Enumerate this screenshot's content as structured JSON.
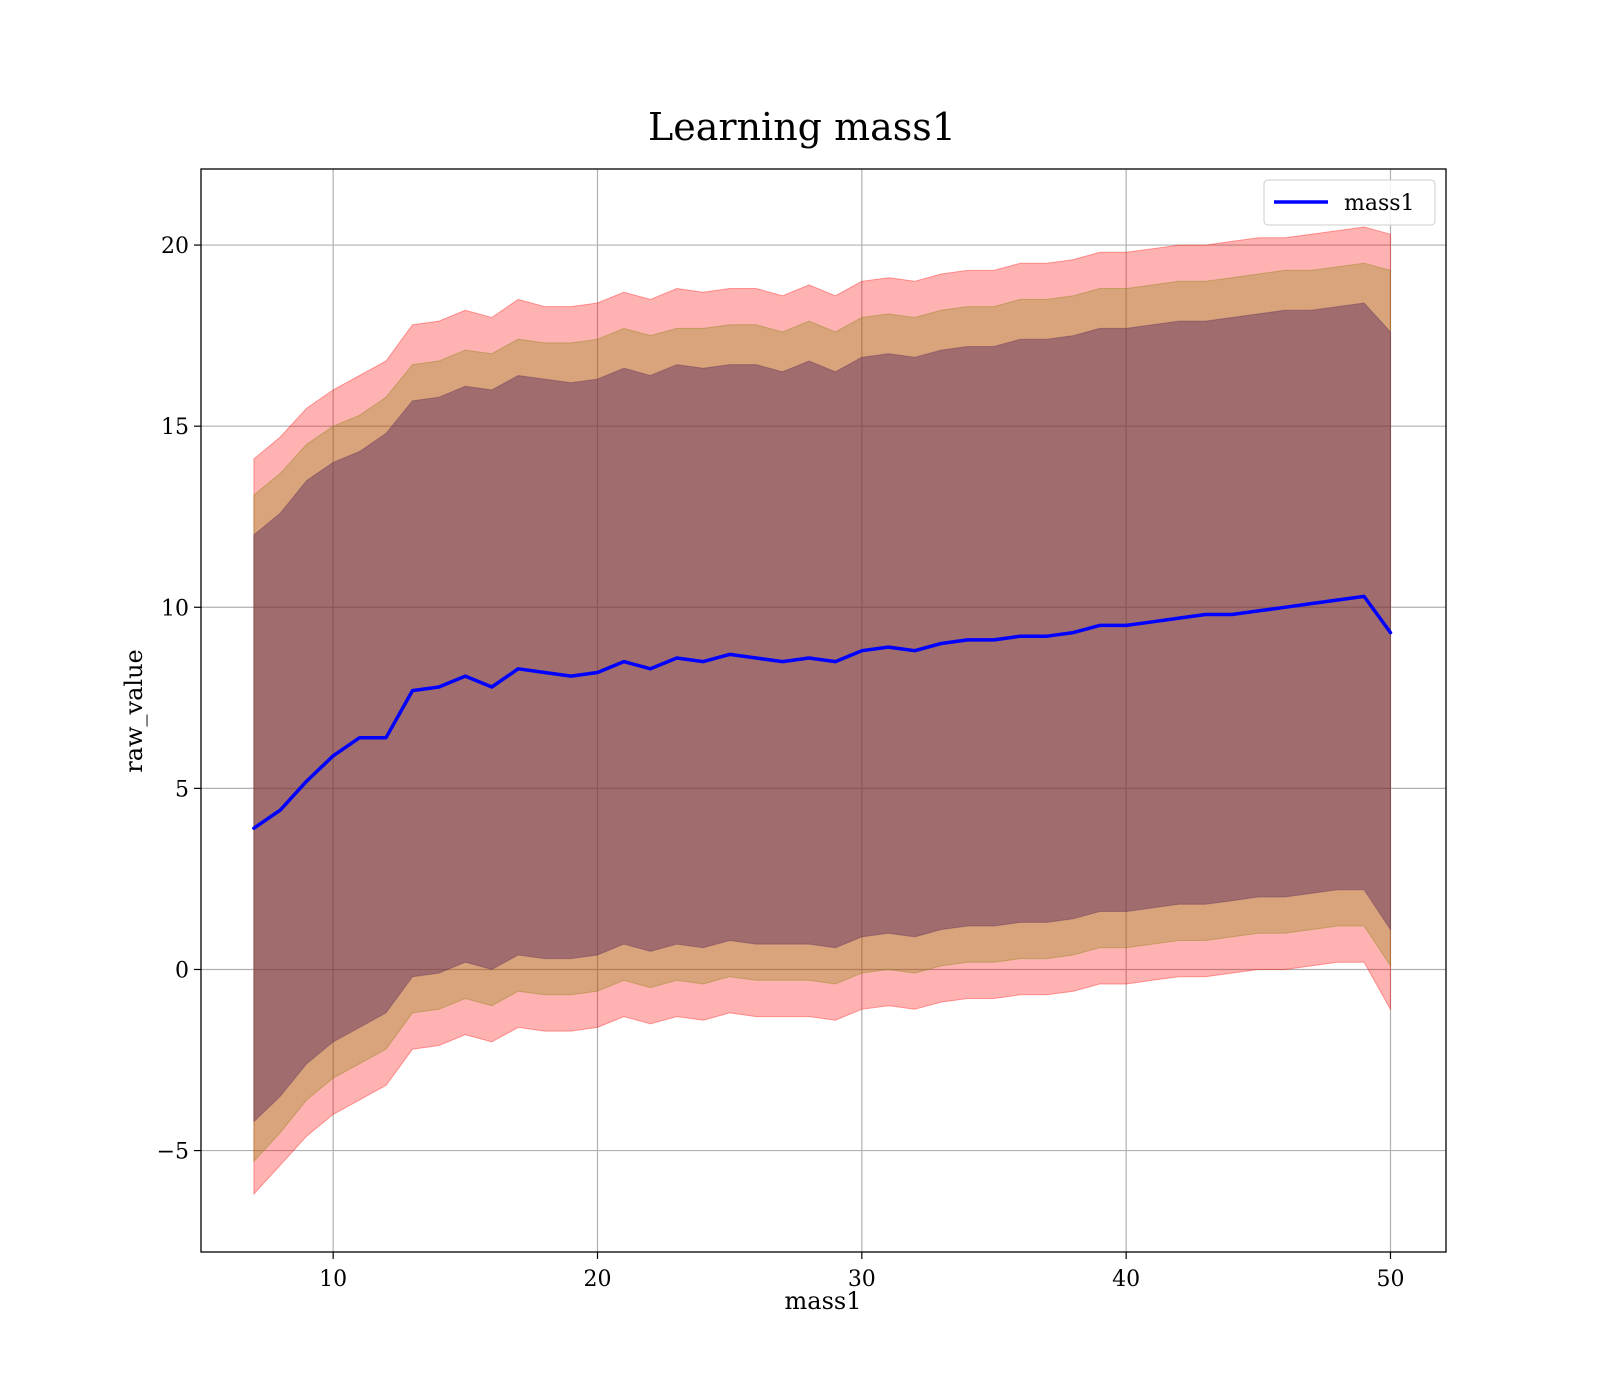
{
  "chart_data": {
    "type": "line",
    "title": "Learning mass1",
    "xlabel": "mass1",
    "ylabel": "raw_value",
    "xlim": [
      5.0,
      52.1
    ],
    "ylim": [
      -7.8,
      22.1
    ],
    "xticks": [
      10,
      20,
      30,
      40,
      50
    ],
    "xtick_labels": [
      "10",
      "20",
      "30",
      "40",
      "50"
    ],
    "yticks": [
      -5,
      0,
      5,
      10,
      15,
      20
    ],
    "ytick_labels": [
      "−5",
      "0",
      "5",
      "10",
      "15",
      "20"
    ],
    "grid": true,
    "legend_position": "top-right",
    "series": [
      {
        "name": "mass1",
        "color": "#0000ff",
        "x": [
          7,
          8,
          9,
          10,
          11,
          12,
          13,
          14,
          15,
          16,
          17,
          18,
          19,
          20,
          21,
          22,
          23,
          24,
          25,
          26,
          27,
          28,
          29,
          30,
          31,
          32,
          33,
          34,
          35,
          36,
          37,
          38,
          39,
          40,
          41,
          42,
          43,
          44,
          45,
          46,
          47,
          48,
          49,
          50
        ],
        "values": [
          3.9,
          4.4,
          5.2,
          5.9,
          6.4,
          6.4,
          7.7,
          7.8,
          8.1,
          7.8,
          8.3,
          8.2,
          8.1,
          8.2,
          8.5,
          8.3,
          8.6,
          8.5,
          8.7,
          8.6,
          8.5,
          8.6,
          8.5,
          8.8,
          8.9,
          8.8,
          9.0,
          9.1,
          9.1,
          9.2,
          9.2,
          9.3,
          9.5,
          9.5,
          9.6,
          9.7,
          9.8,
          9.8,
          9.9,
          10.0,
          10.1,
          10.2,
          10.3,
          9.3
        ],
        "bands": [
          {
            "color": "#ff0000",
            "opacity": 0.3,
            "upper": [
              14.1,
              14.7,
              15.5,
              16.0,
              16.4,
              16.8,
              17.8,
              17.9,
              18.2,
              18.0,
              18.5,
              18.3,
              18.3,
              18.4,
              18.7,
              18.5,
              18.8,
              18.7,
              18.8,
              18.8,
              18.6,
              18.9,
              18.6,
              19.0,
              19.1,
              19.0,
              19.2,
              19.3,
              19.3,
              19.5,
              19.5,
              19.6,
              19.8,
              19.8,
              19.9,
              20.0,
              20.0,
              20.1,
              20.2,
              20.2,
              20.3,
              20.4,
              20.5,
              20.3
            ],
            "lower": [
              -6.2,
              -5.4,
              -4.6,
              -4.0,
              -3.6,
              -3.2,
              -2.2,
              -2.1,
              -1.8,
              -2.0,
              -1.6,
              -1.7,
              -1.7,
              -1.6,
              -1.3,
              -1.5,
              -1.3,
              -1.4,
              -1.2,
              -1.3,
              -1.3,
              -1.3,
              -1.4,
              -1.1,
              -1.0,
              -1.1,
              -0.9,
              -0.8,
              -0.8,
              -0.7,
              -0.7,
              -0.6,
              -0.4,
              -0.4,
              -0.3,
              -0.2,
              -0.2,
              -0.1,
              0.0,
              0.0,
              0.1,
              0.2,
              0.2,
              -1.1
            ]
          },
          {
            "color": "#808000",
            "opacity": 0.3,
            "upper": [
              13.1,
              13.7,
              14.5,
              15.0,
              15.3,
              15.8,
              16.7,
              16.8,
              17.1,
              17.0,
              17.4,
              17.3,
              17.3,
              17.4,
              17.7,
              17.5,
              17.7,
              17.7,
              17.8,
              17.8,
              17.6,
              17.9,
              17.6,
              18.0,
              18.1,
              18.0,
              18.2,
              18.3,
              18.3,
              18.5,
              18.5,
              18.6,
              18.8,
              18.8,
              18.9,
              19.0,
              19.0,
              19.1,
              19.2,
              19.3,
              19.3,
              19.4,
              19.5,
              19.3
            ],
            "lower": [
              -5.3,
              -4.5,
              -3.6,
              -3.0,
              -2.6,
              -2.2,
              -1.2,
              -1.1,
              -0.8,
              -1.0,
              -0.6,
              -0.7,
              -0.7,
              -0.6,
              -0.3,
              -0.5,
              -0.3,
              -0.4,
              -0.2,
              -0.3,
              -0.3,
              -0.3,
              -0.4,
              -0.1,
              0.0,
              -0.1,
              0.1,
              0.2,
              0.2,
              0.3,
              0.3,
              0.4,
              0.6,
              0.6,
              0.7,
              0.8,
              0.8,
              0.9,
              1.0,
              1.0,
              1.1,
              1.2,
              1.2,
              0.1
            ]
          },
          {
            "color": "#5a2a5a",
            "opacity": 0.45,
            "upper": [
              12.0,
              12.6,
              13.5,
              14.0,
              14.3,
              14.8,
              15.7,
              15.8,
              16.1,
              16.0,
              16.4,
              16.3,
              16.2,
              16.3,
              16.6,
              16.4,
              16.7,
              16.6,
              16.7,
              16.7,
              16.5,
              16.8,
              16.5,
              16.9,
              17.0,
              16.9,
              17.1,
              17.2,
              17.2,
              17.4,
              17.4,
              17.5,
              17.7,
              17.7,
              17.8,
              17.9,
              17.9,
              18.0,
              18.1,
              18.2,
              18.2,
              18.3,
              18.4,
              17.6
            ],
            "lower": [
              -4.2,
              -3.5,
              -2.6,
              -2.0,
              -1.6,
              -1.2,
              -0.2,
              -0.1,
              0.2,
              0.0,
              0.4,
              0.3,
              0.3,
              0.4,
              0.7,
              0.5,
              0.7,
              0.6,
              0.8,
              0.7,
              0.7,
              0.7,
              0.6,
              0.9,
              1.0,
              0.9,
              1.1,
              1.2,
              1.2,
              1.3,
              1.3,
              1.4,
              1.6,
              1.6,
              1.7,
              1.8,
              1.8,
              1.9,
              2.0,
              2.0,
              2.1,
              2.2,
              2.2,
              1.1
            ]
          }
        ]
      }
    ]
  }
}
